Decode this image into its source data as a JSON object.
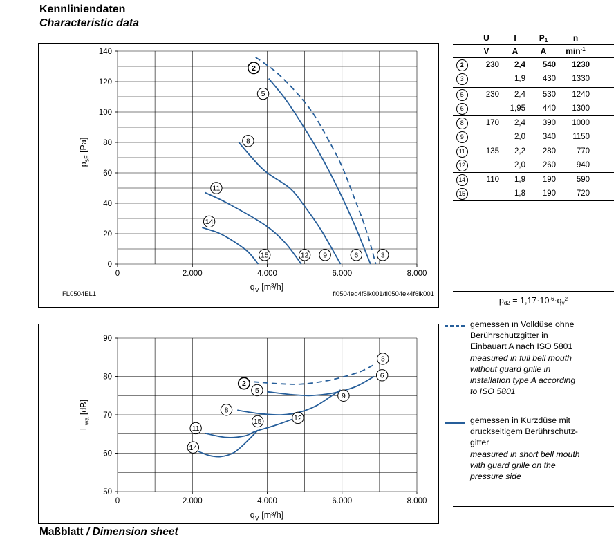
{
  "page": {
    "title_de": "Kennliniendaten",
    "title_en": "Characteristic data",
    "footer_de": "Maßblatt",
    "footer_sep": " / ",
    "footer_en": "Dimension sheet"
  },
  "colors": {
    "curve": "#265e9a",
    "grid": "#000000",
    "text": "#000000"
  },
  "table": {
    "col_u": {
      "name": "U",
      "unit": "V"
    },
    "col_i": {
      "name": "I",
      "unit": "A"
    },
    "col_p": {
      "name": "P",
      "sub": "1",
      "unit": "A"
    },
    "col_n": {
      "name": "n",
      "unit": "min",
      "unit_sup": "-1"
    },
    "rows": [
      {
        "id": "2",
        "u": "230",
        "i": "2,4",
        "p": "540",
        "n": "1230"
      },
      {
        "id": "3",
        "u": "",
        "i": "1,9",
        "p": "430",
        "n": "1330"
      },
      {
        "id": "5",
        "u": "230",
        "i": "2,4",
        "p": "530",
        "n": "1240"
      },
      {
        "id": "6",
        "u": "",
        "i": "1,95",
        "p": "440",
        "n": "1300"
      },
      {
        "id": "8",
        "u": "170",
        "i": "2,4",
        "p": "390",
        "n": "1000"
      },
      {
        "id": "9",
        "u": "",
        "i": "2,0",
        "p": "340",
        "n": "1150"
      },
      {
        "id": "11",
        "u": "135",
        "i": "2,2",
        "p": "280",
        "n": "770"
      },
      {
        "id": "12",
        "u": "",
        "i": "2,0",
        "p": "260",
        "n": "940"
      },
      {
        "id": "14",
        "u": "110",
        "i": "1,9",
        "p": "190",
        "n": "590"
      },
      {
        "id": "15",
        "u": "",
        "i": "1,8",
        "p": "190",
        "n": "720"
      }
    ]
  },
  "formula": {
    "lhs": "p",
    "lhs_sub": "d2",
    "eq": " = 1,17·10",
    "exp": "-6",
    "mid": "·q",
    "q_sub": "v",
    "q_exp": "2"
  },
  "legend": {
    "items": [
      {
        "style": "dashed",
        "de": "gemessen in Volldüse ohne\nBerührschutzgitter in\nEinbauart A nach ISO 5801",
        "en": "measured in full bell mouth\nwithout guard grille in\ninstallation type A according\nto ISO 5801"
      },
      {
        "style": "solid",
        "de": "gemessen in Kurzdüse mit\ndruckseitigem Berührschutz-\ngitter",
        "en": "measured in short bell mouth\nwith guard grille on the\npressure side"
      }
    ]
  },
  "chart_data": [
    {
      "type": "line",
      "id": "pressure-curves",
      "title": "",
      "xlabel": "qV [m³/h]",
      "ylabel": "psF [Pa]",
      "xlabel_parts": [
        {
          "t": "q"
        },
        {
          "t": "V",
          "sub": true
        },
        {
          "t": " [m³/h]"
        }
      ],
      "ylabel_parts": [
        {
          "t": "p"
        },
        {
          "t": "sF",
          "sub": true
        },
        {
          "t": " [Pa]"
        }
      ],
      "xlim": [
        0,
        8000
      ],
      "ylim": [
        0,
        140
      ],
      "x_grid": 1000,
      "y_grid": 10,
      "grid": true,
      "legend_position": "none",
      "x_ticks": [
        [
          0,
          "0"
        ],
        [
          2000,
          "2.000"
        ],
        [
          4000,
          "4.000"
        ],
        [
          6000,
          "6.000"
        ],
        [
          8000,
          "8.000"
        ]
      ],
      "y_ticks": [
        [
          0,
          "0"
        ],
        [
          20,
          "20"
        ],
        [
          40,
          "40"
        ],
        [
          60,
          "60"
        ],
        [
          80,
          "80"
        ],
        [
          100,
          "100"
        ],
        [
          120,
          "120"
        ],
        [
          140,
          "140"
        ]
      ],
      "footer_left": "FL0504EL1",
      "footer_right": "fl0504eq4f5lk001/fl0504ek4f6lk001",
      "series": [
        {
          "name": "2-3 (230 V, Volldüse)",
          "style": "dashed",
          "points": [
            [
              3690,
              136
            ],
            [
              4200,
              127
            ],
            [
              4700,
              115
            ],
            [
              5200,
              100
            ],
            [
              5650,
              81
            ],
            [
              6000,
              64
            ],
            [
              6350,
              42
            ],
            [
              6650,
              22
            ],
            [
              6900,
              0
            ]
          ]
        },
        {
          "name": "5-6 (230 V)",
          "style": "solid",
          "points": [
            [
              4040,
              122
            ],
            [
              4500,
              108
            ],
            [
              4980,
              90
            ],
            [
              5370,
              74
            ],
            [
              5700,
              59
            ],
            [
              6000,
              44
            ],
            [
              6350,
              25
            ],
            [
              6760,
              0
            ]
          ]
        },
        {
          "name": "8-9 (170 V)",
          "style": "solid",
          "points": [
            [
              3240,
              80
            ],
            [
              3900,
              62
            ],
            [
              4600,
              50
            ],
            [
              5000,
              38
            ],
            [
              5450,
              22
            ],
            [
              5960,
              0
            ]
          ]
        },
        {
          "name": "11-12 (135 V)",
          "style": "solid",
          "points": [
            [
              2340,
              47
            ],
            [
              2940,
              40
            ],
            [
              3920,
              26
            ],
            [
              4480,
              14
            ],
            [
              4910,
              0
            ]
          ]
        },
        {
          "name": "14-15 (110 V)",
          "style": "solid",
          "points": [
            [
              2260,
              24
            ],
            [
              2700,
              20.5
            ],
            [
              3100,
              15
            ],
            [
              3490,
              8
            ],
            [
              3760,
              0
            ]
          ]
        }
      ],
      "point_labels": [
        {
          "text": "2",
          "x": 3640,
          "y": 129,
          "bold": true
        },
        {
          "text": "5",
          "x": 3890,
          "y": 112
        },
        {
          "text": "8",
          "x": 3490,
          "y": 81
        },
        {
          "text": "11",
          "x": 2640,
          "y": 50
        },
        {
          "text": "14",
          "x": 2450,
          "y": 28
        },
        {
          "text": "15",
          "x": 3930,
          "y": 6
        },
        {
          "text": "12",
          "x": 5000,
          "y": 6
        },
        {
          "text": "9",
          "x": 5545,
          "y": 6
        },
        {
          "text": "6",
          "x": 6380,
          "y": 6
        },
        {
          "text": "3",
          "x": 7090,
          "y": 6
        }
      ]
    },
    {
      "type": "line",
      "id": "sound-level-curves",
      "title": "",
      "xlabel": "qV [m³/h]",
      "ylabel": "Lwa [dB]",
      "xlabel_parts": [
        {
          "t": "q"
        },
        {
          "t": "V",
          "sub": true
        },
        {
          "t": " [m³/h]"
        }
      ],
      "ylabel_parts": [
        {
          "t": "L"
        },
        {
          "t": "wa",
          "sub": true
        },
        {
          "t": " [dB]"
        }
      ],
      "xlim": [
        0,
        8000
      ],
      "ylim": [
        50,
        90
      ],
      "x_grid": 1000,
      "y_grid": 5,
      "grid": true,
      "legend_position": "right",
      "x_ticks": [
        [
          0,
          "0"
        ],
        [
          2000,
          "2.000"
        ],
        [
          4000,
          "4.000"
        ],
        [
          6000,
          "6.000"
        ],
        [
          8000,
          "8.000"
        ]
      ],
      "y_ticks": [
        [
          50,
          "50"
        ],
        [
          60,
          "60"
        ],
        [
          70,
          "70"
        ],
        [
          80,
          "80"
        ],
        [
          90,
          "90"
        ]
      ],
      "series": [
        {
          "name": "2-3 (230 V, Volldüse)",
          "style": "dashed",
          "points": [
            [
              3640,
              78.6
            ],
            [
              4300,
              78.1
            ],
            [
              4900,
              78.0
            ],
            [
              5500,
              78.7
            ],
            [
              6000,
              79.8
            ],
            [
              6500,
              81.3
            ],
            [
              6900,
              83.3
            ]
          ]
        },
        {
          "name": "5-6 (230 V)",
          "style": "solid",
          "points": [
            [
              4000,
              76.0
            ],
            [
              4600,
              75.3
            ],
            [
              5100,
              75.0
            ],
            [
              5600,
              75.4
            ],
            [
              6000,
              76.2
            ],
            [
              6400,
              77.5
            ],
            [
              6860,
              80.0
            ]
          ]
        },
        {
          "name": "8-9 (170 V)",
          "style": "solid",
          "points": [
            [
              3200,
              71.2
            ],
            [
              3800,
              70.3
            ],
            [
              4400,
              70.0
            ],
            [
              4900,
              70.8
            ],
            [
              5300,
              72.3
            ],
            [
              5700,
              74.8
            ],
            [
              5960,
              76.5
            ]
          ]
        },
        {
          "name": "11-12 (135 V)",
          "style": "solid",
          "points": [
            [
              2330,
              65.2
            ],
            [
              2900,
              64.1
            ],
            [
              3400,
              64.5
            ],
            [
              3690,
              65.7
            ],
            [
              4200,
              67.2
            ],
            [
              4600,
              68.6
            ],
            [
              4900,
              69.7
            ]
          ]
        },
        {
          "name": "14-15 (110 V)",
          "style": "solid",
          "points": [
            [
              2150,
              60.5
            ],
            [
              2450,
              59.4
            ],
            [
              2750,
              59.1
            ],
            [
              3100,
              60.1
            ],
            [
              3430,
              62.8
            ],
            [
              3750,
              66.0
            ]
          ]
        }
      ],
      "point_labels": [
        {
          "text": "2",
          "x": 3380,
          "y": 78.2,
          "bold": true
        },
        {
          "text": "5",
          "x": 3730,
          "y": 76.4
        },
        {
          "text": "8",
          "x": 2910,
          "y": 71.3
        },
        {
          "text": "11",
          "x": 2090,
          "y": 66.5
        },
        {
          "text": "14",
          "x": 2020,
          "y": 61.5
        },
        {
          "text": "15",
          "x": 3745,
          "y": 68.3
        },
        {
          "text": "12",
          "x": 4820,
          "y": 69.2
        },
        {
          "text": "9",
          "x": 6040,
          "y": 75.0
        },
        {
          "text": "6",
          "x": 7070,
          "y": 80.3
        },
        {
          "text": "3",
          "x": 7090,
          "y": 84.6
        }
      ]
    }
  ]
}
